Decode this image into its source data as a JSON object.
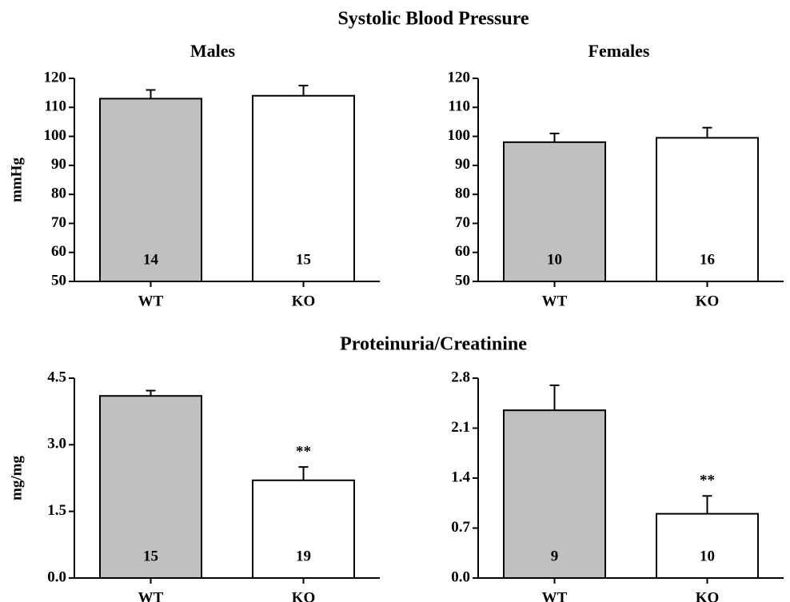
{
  "section_titles": [
    "Systolic Blood Pressure",
    "Proteinuria/Creatinine"
  ],
  "chart_data": [
    {
      "type": "bar",
      "title": "Males",
      "ylabel": "mmHg",
      "categories": [
        "WT",
        "KO"
      ],
      "values": [
        113,
        114
      ],
      "errors": [
        3,
        3.5
      ],
      "n": [
        14,
        15
      ],
      "annotations": [
        null,
        null
      ],
      "colors": [
        "#c0c0c0",
        "#ffffff"
      ],
      "ylim": [
        50,
        120
      ],
      "yticks": [
        50,
        60,
        70,
        80,
        90,
        100,
        110,
        120
      ]
    },
    {
      "type": "bar",
      "title": "Females",
      "categories": [
        "WT",
        "KO"
      ],
      "values": [
        98,
        99.5
      ],
      "errors": [
        3,
        3.5
      ],
      "n": [
        10,
        16
      ],
      "annotations": [
        null,
        null
      ],
      "colors": [
        "#c0c0c0",
        "#ffffff"
      ],
      "ylim": [
        50,
        120
      ],
      "yticks": [
        50,
        60,
        70,
        80,
        90,
        100,
        110,
        120
      ]
    },
    {
      "type": "bar",
      "ylabel": "mg/mg",
      "categories": [
        "WT",
        "KO"
      ],
      "values": [
        4.1,
        2.2
      ],
      "errors": [
        0.12,
        0.3
      ],
      "n": [
        15,
        19
      ],
      "annotations": [
        null,
        "**"
      ],
      "colors": [
        "#c0c0c0",
        "#ffffff"
      ],
      "ylim": [
        0,
        4.5
      ],
      "yticks": [
        {
          "value": 0,
          "label": "0.0"
        },
        1.5,
        {
          "value": 3,
          "label": "3.0"
        },
        4.5
      ]
    },
    {
      "type": "bar",
      "categories": [
        "WT",
        "KO"
      ],
      "values": [
        2.35,
        0.9
      ],
      "errors": [
        0.35,
        0.25
      ],
      "n": [
        9,
        10
      ],
      "annotations": [
        null,
        "**"
      ],
      "colors": [
        "#c0c0c0",
        "#ffffff"
      ],
      "ylim": [
        0,
        2.8
      ],
      "yticks": [
        {
          "value": 0,
          "label": "0.0"
        },
        0.7,
        1.4,
        2.1,
        2.8
      ]
    }
  ]
}
